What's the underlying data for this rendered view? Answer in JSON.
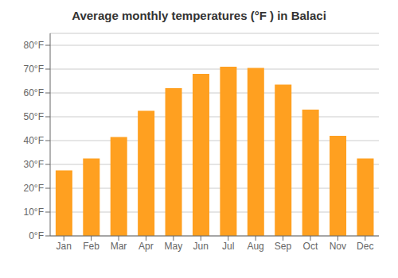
{
  "chart_data": {
    "type": "bar",
    "title": "Average monthly temperatures (°F ) in Balaci",
    "categories": [
      "Jan",
      "Feb",
      "Mar",
      "Apr",
      "May",
      "Jun",
      "Jul",
      "Aug",
      "Sep",
      "Oct",
      "Nov",
      "Dec"
    ],
    "values": [
      27.5,
      32.5,
      41.5,
      52.5,
      62.0,
      68.0,
      71.0,
      70.5,
      63.5,
      53.0,
      42.0,
      32.5
    ],
    "color": "#FFA020",
    "ylim": [
      0,
      85
    ],
    "yticks": [
      {
        "value": 0,
        "label": "0°F"
      },
      {
        "value": 10,
        "label": "10°F"
      },
      {
        "value": 20,
        "label": "20°F"
      },
      {
        "value": 30,
        "label": "30°F"
      },
      {
        "value": 40,
        "label": "40°F"
      },
      {
        "value": 50,
        "label": "50°F"
      },
      {
        "value": 60,
        "label": "60°F"
      },
      {
        "value": 70,
        "label": "70°F"
      },
      {
        "value": 80,
        "label": "80°F"
      }
    ],
    "grid": true
  }
}
